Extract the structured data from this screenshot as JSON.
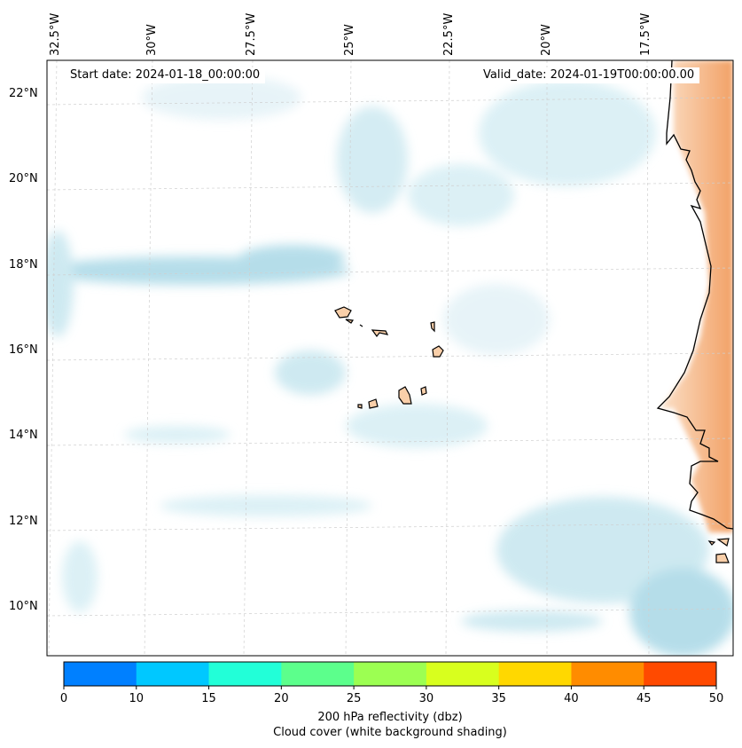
{
  "map": {
    "start_date_label": "Start date: 2024-01-18_00:00:00",
    "valid_date_label": "Valid_date: 2024-01-19T00:00:00.00",
    "longitude_labels": [
      "32.5°W",
      "30°W",
      "27.5°W",
      "25°W",
      "22.5°W",
      "20°W",
      "17.5°W"
    ],
    "latitude_labels": [
      "22°N",
      "20°N",
      "18°N",
      "16°N",
      "14°N",
      "12°N",
      "10°N"
    ],
    "land_color": "#f9cfa9",
    "cloud_color": "#a9d8e6",
    "heating_color": "#f4a56c"
  },
  "colorbar": {
    "tick_labels": [
      "0",
      "10",
      "15",
      "20",
      "25",
      "30",
      "35",
      "40",
      "45",
      "50"
    ],
    "colors": [
      "#0080ff",
      "#00c8ff",
      "#22ffd8",
      "#5cff8c",
      "#9cff52",
      "#d8ff1e",
      "#ffd800",
      "#ff8c00",
      "#ff4a00"
    ],
    "label_line1": "200 hPa reflectivity (dbz)",
    "label_line2": "Cloud cover (white background shading)"
  }
}
